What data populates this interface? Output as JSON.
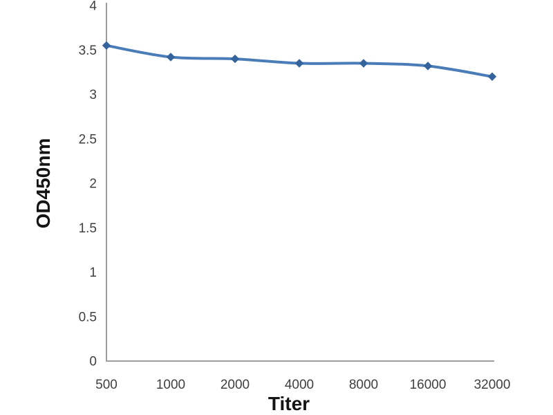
{
  "page": {
    "background": "#ffffff",
    "description": "ELISA antibody titration line chart"
  },
  "chart_data": {
    "type": "line",
    "title": "",
    "xlabel": "Titer",
    "ylabel": "OD450nm",
    "categories": [
      "500",
      "1000",
      "2000",
      "4000",
      "8000",
      "16000",
      "32000"
    ],
    "series": [
      {
        "name": "OD450nm",
        "values": [
          3.55,
          3.42,
          3.4,
          3.35,
          3.35,
          3.32,
          3.2
        ]
      }
    ],
    "ylim": [
      0,
      4
    ],
    "ytick_step": 0.5,
    "ytick_labels": [
      "0",
      "0.5",
      "1",
      "1.5",
      "2",
      "2.5",
      "3",
      "3.5",
      "4"
    ],
    "grid": false,
    "legend_position": "none",
    "marker_shape": "diamond",
    "colors": {
      "line": "#4a7cb8",
      "marker": "#35639c",
      "axis": "#9e9e9e",
      "tick_text": "#3f3f3f",
      "title_text": "#141414"
    }
  }
}
